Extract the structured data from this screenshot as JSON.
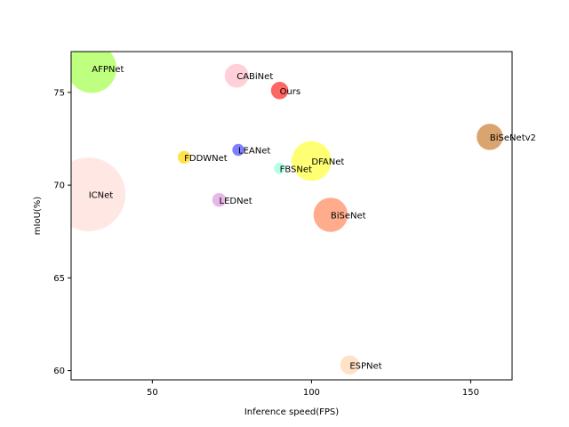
{
  "chart_data": {
    "type": "scatter",
    "title": "",
    "xlabel": "Inference speed(FPS)",
    "ylabel": "mIoU(%)",
    "xlim": [
      24.5,
      163
    ],
    "ylim": [
      59.5,
      77.2
    ],
    "xticks": [
      50,
      100,
      150
    ],
    "yticks": [
      60,
      65,
      70,
      75
    ],
    "grid": false,
    "legend": "none",
    "points": [
      {
        "label": "ICNet",
        "x": 30,
        "y": 69.5,
        "size": 26.8,
        "color": "#ffe4e1",
        "alpha": 0.9
      },
      {
        "label": "AFPNet",
        "x": 31,
        "y": 76.3,
        "size": 12,
        "color": "#7fff00",
        "alpha": 0.5
      },
      {
        "label": "CABiNet",
        "x": 76.5,
        "y": 75.9,
        "size": 2.8,
        "color": "#ffc0cb",
        "alpha": 0.75
      },
      {
        "label": "Ours",
        "x": 90,
        "y": 75.1,
        "size": 1.5,
        "color": "#ff0000",
        "alpha": 0.6
      },
      {
        "label": "BiSeNetv2",
        "x": 156,
        "y": 72.6,
        "size": 3.4,
        "color": "#cd853f",
        "alpha": 0.75
      },
      {
        "label": "DFANet",
        "x": 100,
        "y": 71.3,
        "size": 7.8,
        "color": "#ffff00",
        "alpha": 0.55
      },
      {
        "label": "LEANet",
        "x": 77,
        "y": 71.9,
        "size": 0.7,
        "color": "#0000ff",
        "alpha": 0.5
      },
      {
        "label": "FDDWNet",
        "x": 60,
        "y": 71.5,
        "size": 0.8,
        "color": "#ffd700",
        "alpha": 0.7
      },
      {
        "label": "FBSNet",
        "x": 90,
        "y": 70.9,
        "size": 0.62,
        "color": "#7fffd4",
        "alpha": 0.6
      },
      {
        "label": "LEDNet",
        "x": 71,
        "y": 69.2,
        "size": 0.94,
        "color": "#dda0dd",
        "alpha": 0.75
      },
      {
        "label": "BiSeNet",
        "x": 106,
        "y": 68.4,
        "size": 5.8,
        "color": "#ff7f50",
        "alpha": 0.65
      },
      {
        "label": "ESPNet",
        "x": 112,
        "y": 60.3,
        "size": 1.8,
        "color": "#ffdab9",
        "alpha": 0.8
      }
    ]
  }
}
